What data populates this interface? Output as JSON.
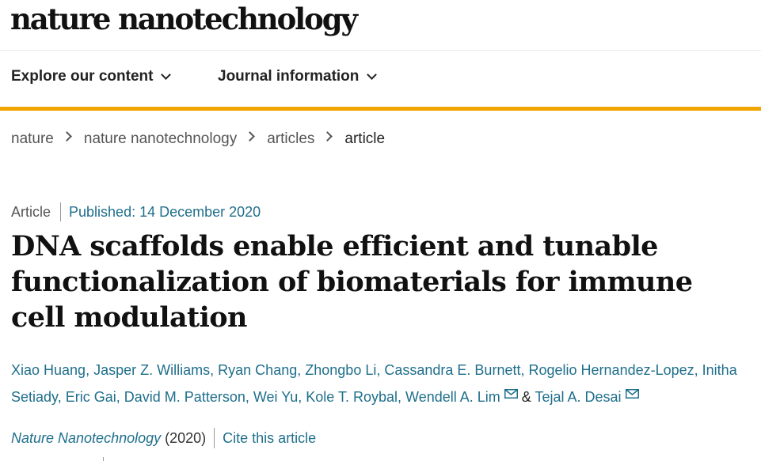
{
  "site": {
    "logo": "nature nanotechnology"
  },
  "nav": {
    "items": [
      {
        "label": "Explore our content"
      },
      {
        "label": "Journal information"
      }
    ]
  },
  "breadcrumb": {
    "items": [
      "nature",
      "nature nanotechnology",
      "articles"
    ],
    "current": "article"
  },
  "article": {
    "type": "Article",
    "published": "Published: 14 December 2020",
    "title": "DNA scaffolds enable efficient and tunable functionalization of biomaterials for immune cell modulation",
    "authors": [
      "Xiao Huang",
      "Jasper Z. Williams",
      "Ryan Chang",
      "Zhongbo Li",
      "Cassandra E. Burnett",
      "Rogelio Hernandez-Lopez",
      "Initha Setiady",
      "Eric Gai",
      "David M. Patterson",
      "Wei Yu",
      "Kole T. Roybal",
      "Wendell A. Lim",
      "Tejal A. Desai"
    ],
    "amp": "&",
    "separator": ",",
    "journal": "Nature Nanotechnology",
    "year": "(2020)",
    "cite_label": "Cite this article"
  },
  "icons": {
    "nav_chevron": "chevron-down-icon",
    "breadcrumb_chevron": "chevron-right-icon",
    "mail": "mail-icon"
  },
  "colors": {
    "accent_bar": "#f0a500",
    "link": "#1f6f8b",
    "text": "#222222"
  }
}
